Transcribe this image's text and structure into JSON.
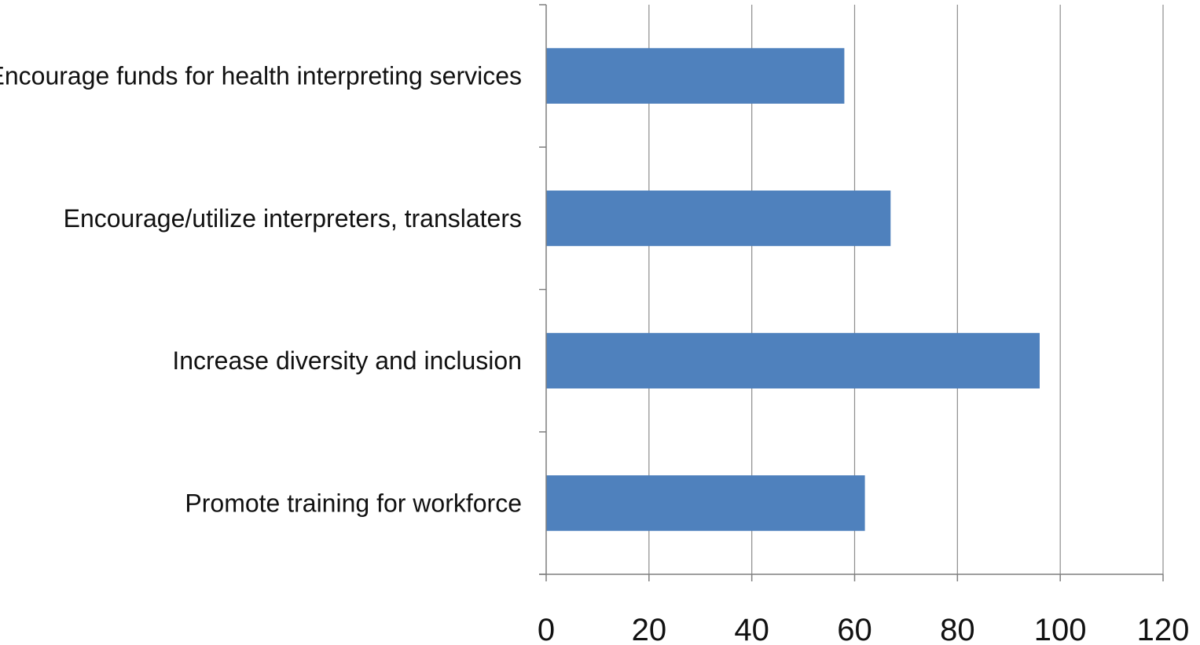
{
  "chart_data": {
    "type": "bar",
    "orientation": "horizontal",
    "categories": [
      "Encourage funds for health interpreting services",
      "Encourage/utilize interpreters, translaters",
      "Increase diversity and inclusion",
      "Promote training for workforce"
    ],
    "values": [
      58,
      67,
      96,
      62
    ],
    "xlim": [
      0,
      120
    ],
    "x_ticks": [
      "0",
      "20",
      "40",
      "60",
      "80",
      "100",
      "120"
    ],
    "x_tick_values": [
      0,
      20,
      40,
      60,
      80,
      100,
      120
    ],
    "title": "",
    "xlabel": "",
    "ylabel": "",
    "grid": "vertical",
    "legend": "none",
    "bar_color": "#4f81bd",
    "grid_color": "#8c8c8c",
    "axis_color": "#7f7f7f"
  }
}
